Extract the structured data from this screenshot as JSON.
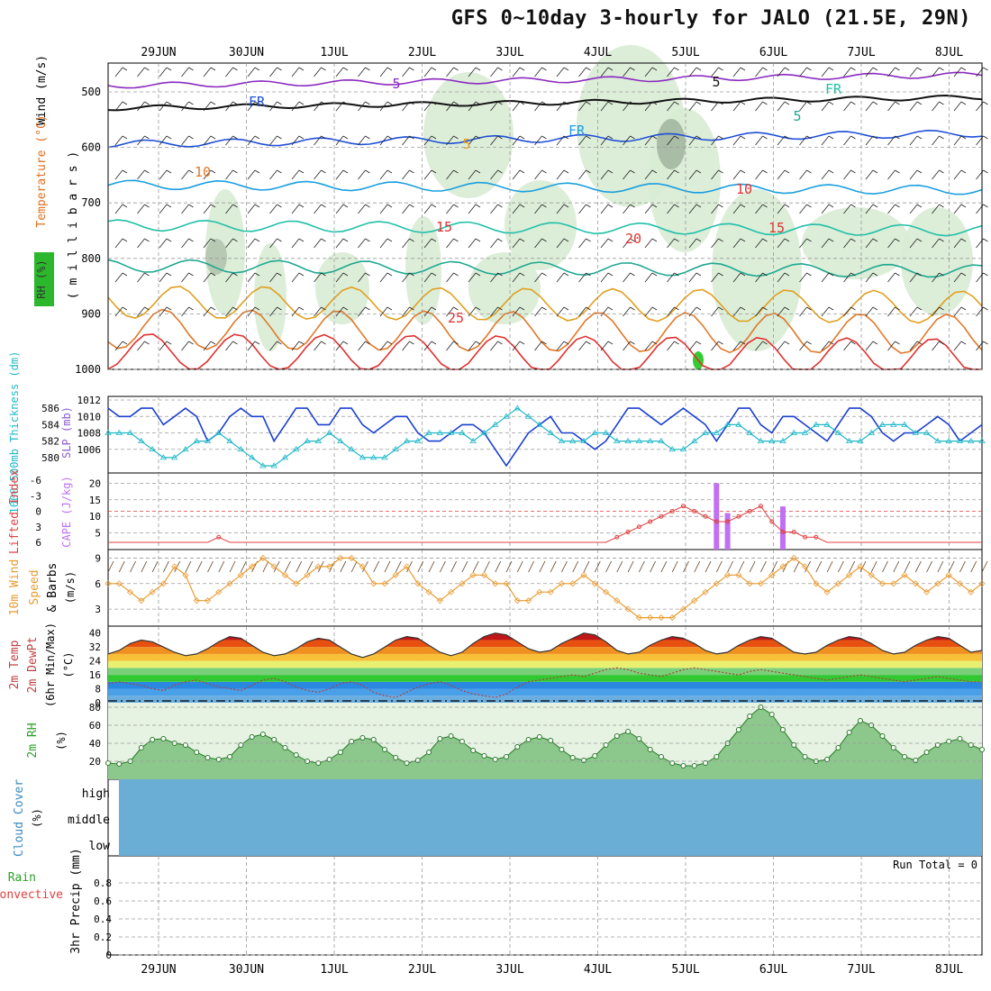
{
  "title": "GFS 0~10day 3-hourly for JALO (21.5E, 29N)",
  "dates": [
    "29JUN",
    "30JUN",
    "1JUL",
    "2JUL",
    "3JUL",
    "4JUL",
    "5JUL",
    "6JUL",
    "7JUL",
    "8JUL"
  ],
  "colors": {
    "frame": "#000000",
    "grid": "#9a9a9a",
    "rh_green": "#2e8b2e",
    "cape": "#c070f0",
    "lifted": "#e04040",
    "wind": "#e89a30",
    "slp": "#1a3fd0",
    "thick": "#20b8c8",
    "cloud": "#6aaed6"
  },
  "panels": {
    "upper": {
      "ylabel_rh": "RH (%)",
      "ylabel_temp": "Temperature (°C)",
      "ylabel_wind": "Wind (m/s)",
      "ylabel_mb": "( m i l l i b a r s )",
      "yticks": [
        "500",
        "600",
        "700",
        "800",
        "900",
        "1000"
      ],
      "contour_labels": [
        "5",
        "5",
        "FR",
        "FR",
        "FR",
        "5",
        "5",
        "10",
        "10",
        "15",
        "15",
        "20",
        "25"
      ]
    },
    "slp": {
      "ylabel_thick": "1000-500mb Thickness (dm)",
      "ylabel_slp": "SLP (mb)",
      "thick_ticks": [
        "586",
        "584",
        "582",
        "580"
      ],
      "slp_ticks": [
        "1012",
        "1010",
        "1008",
        "1006"
      ]
    },
    "cape": {
      "ylabel_li": "Lifted Index",
      "ylabel_cape": "CAPE (J/kg)",
      "li_ticks": [
        "-6",
        "-3",
        "0",
        "3",
        "6"
      ],
      "cape_ticks": [
        "20",
        "15",
        "10",
        "5"
      ]
    },
    "wind10": {
      "ylabel_a": "10m Wind",
      "ylabel_b": "Speed",
      "ylabel_c": "& Barbs",
      "ylabel_unit": "(m/s)",
      "yticks": [
        "9",
        "6",
        "3"
      ]
    },
    "temp2m": {
      "ylabel_a": "2m Temp",
      "ylabel_b": "2m DewPt",
      "ylabel_c": "(6hr Min/Max)",
      "ylabel_unit": "(°C)",
      "yticks": [
        "40",
        "32",
        "24",
        "16",
        "8",
        "0"
      ]
    },
    "rh2m": {
      "ylabel_a": "2m RH",
      "ylabel_unit": "(%)",
      "yticks": [
        "80",
        "60",
        "40",
        "20"
      ]
    },
    "cloud": {
      "ylabel_a": "Cloud Cover",
      "ylabel_unit": "(%)",
      "levels": [
        "high",
        "middle",
        "low"
      ]
    },
    "precip": {
      "ylabel_a": "Total / Rain",
      "ylabel_b": "Convective",
      "ylabel_c": "3hr Precip (mm)",
      "yticks": [
        "0.8",
        "0.6",
        "0.4",
        "0.2",
        "0"
      ],
      "run_total": "Run Total = 0"
    }
  },
  "chart_data": [
    {
      "type": "line",
      "name_unprinted": true,
      "series": [
        {
          "name": "SLP (mb)",
          "values": [
            1011,
            1010,
            1010,
            1011,
            1011,
            1009,
            1010,
            1011,
            1010,
            1007,
            1008,
            1010,
            1011,
            1010,
            1010,
            1007,
            1009,
            1011,
            1011,
            1009,
            1009,
            1011,
            1011,
            1009,
            1008,
            1009,
            1010,
            1010,
            1008,
            1007,
            1007,
            1008,
            1009,
            1009,
            1008,
            1006,
            1004,
            1006,
            1008,
            1009,
            1010,
            1008,
            1008,
            1007,
            1006,
            1007,
            1009,
            1011,
            1011,
            1010,
            1009,
            1010,
            1011,
            1010,
            1009,
            1007,
            1009,
            1011,
            1011,
            1009,
            1008,
            1010,
            1010,
            1009,
            1008,
            1007,
            1009,
            1011,
            1011,
            1010,
            1008,
            1007,
            1008,
            1008,
            1009,
            1010,
            1009,
            1007,
            1008,
            1009
          ]
        },
        {
          "name": "1000-500mb Thickness (dm)",
          "values": [
            583,
            583,
            583,
            582,
            581,
            580,
            580,
            581,
            582,
            582,
            583,
            582,
            581,
            580,
            579,
            579,
            580,
            581,
            582,
            582,
            583,
            582,
            581,
            580,
            580,
            580,
            581,
            582,
            582,
            583,
            583,
            583,
            583,
            582,
            583,
            584,
            585,
            586,
            585,
            584,
            583,
            582,
            582,
            582,
            583,
            583,
            582,
            582,
            582,
            582,
            582,
            581,
            581,
            582,
            583,
            583,
            584,
            584,
            583,
            582,
            582,
            582,
            583,
            583,
            584,
            584,
            583,
            582,
            582,
            583,
            584,
            584,
            584,
            583,
            583,
            582,
            582,
            582,
            582,
            582
          ]
        }
      ],
      "ylim_slp": [
        1004,
        1012
      ],
      "ylim_thick": [
        579,
        587
      ]
    },
    {
      "type": "bar",
      "series": [
        {
          "name": "CAPE (J/kg)",
          "bars": [
            {
              "x": 55,
              "value": 20
            },
            {
              "x": 56,
              "value": 11
            },
            {
              "x": 61,
              "value": 13
            }
          ]
        },
        {
          "name": "Lifted Index",
          "values": [
            6,
            6,
            6,
            6,
            6,
            6,
            6,
            6,
            6,
            6,
            5,
            6,
            6,
            6,
            6,
            6,
            6,
            6,
            6,
            6,
            6,
            6,
            6,
            6,
            6,
            6,
            6,
            6,
            6,
            6,
            6,
            6,
            6,
            6,
            6,
            6,
            6,
            6,
            6,
            6,
            6,
            6,
            6,
            6,
            6,
            6,
            5,
            4,
            3,
            2,
            1,
            0,
            -1,
            0,
            1,
            2,
            2,
            1,
            0,
            -1,
            2,
            4,
            4,
            5,
            5,
            6,
            6,
            6,
            6,
            6,
            6,
            6,
            6,
            6,
            6,
            6,
            6,
            6,
            6,
            6
          ]
        }
      ],
      "ylim_cape": [
        0,
        22
      ],
      "ylim_li": [
        6,
        -6
      ]
    },
    {
      "type": "line",
      "series": [
        {
          "name": "10m Wind Speed",
          "values": [
            6,
            6,
            5,
            4,
            5,
            6,
            8,
            7,
            4,
            4,
            5,
            6,
            7,
            8,
            9,
            8,
            7,
            6,
            7,
            8,
            8,
            9,
            9,
            8,
            6,
            6,
            7,
            8,
            6,
            5,
            4,
            5,
            6,
            7,
            7,
            6,
            6,
            4,
            4,
            5,
            5,
            6,
            6,
            7,
            6,
            5,
            4,
            3,
            2,
            2,
            2,
            2,
            3,
            4,
            5,
            6,
            7,
            7,
            6,
            6,
            7,
            8,
            9,
            8,
            6,
            5,
            6,
            7,
            8,
            7,
            6,
            6,
            7,
            6,
            5,
            6,
            7,
            6,
            5,
            6
          ]
        }
      ],
      "ylim": [
        1,
        10
      ]
    },
    {
      "type": "area",
      "series": [
        {
          "name": "2m Temp",
          "values": [
            28,
            30,
            34,
            36,
            35,
            32,
            29,
            27,
            28,
            31,
            35,
            38,
            37,
            33,
            29,
            27,
            28,
            31,
            35,
            37,
            36,
            32,
            28,
            26,
            28,
            32,
            36,
            38,
            37,
            33,
            29,
            27,
            29,
            34,
            38,
            40,
            39,
            35,
            31,
            29,
            30,
            34,
            37,
            40,
            39,
            35,
            30,
            28,
            29,
            33,
            36,
            38,
            37,
            34,
            30,
            28,
            29,
            33,
            36,
            38,
            37,
            33,
            29,
            28,
            29,
            33,
            36,
            38,
            37,
            34,
            30,
            28,
            29,
            33,
            36,
            38,
            37,
            33,
            29,
            30
          ]
        },
        {
          "name": "2m DewPt",
          "values": [
            11,
            12,
            11,
            10,
            8,
            7,
            10,
            12,
            13,
            11,
            9,
            8,
            7,
            10,
            13,
            14,
            12,
            9,
            7,
            6,
            8,
            11,
            12,
            10,
            6,
            4,
            3,
            6,
            9,
            11,
            12,
            10,
            7,
            5,
            4,
            3,
            5,
            9,
            12,
            13,
            14,
            15,
            16,
            15,
            17,
            19,
            20,
            19,
            17,
            16,
            15,
            17,
            19,
            20,
            19,
            18,
            17,
            16,
            18,
            19,
            18,
            17,
            16,
            15,
            14,
            13,
            14,
            15,
            16,
            15,
            14,
            13,
            12,
            13,
            14,
            15,
            14,
            13,
            12,
            12
          ]
        }
      ],
      "ylim": [
        0,
        44
      ]
    },
    {
      "type": "area",
      "series": [
        {
          "name": "2m RH",
          "values": [
            18,
            17,
            20,
            35,
            44,
            45,
            40,
            38,
            30,
            24,
            22,
            25,
            38,
            47,
            50,
            44,
            35,
            27,
            20,
            18,
            22,
            30,
            42,
            46,
            44,
            33,
            24,
            18,
            21,
            30,
            45,
            48,
            42,
            32,
            26,
            22,
            25,
            36,
            44,
            47,
            43,
            33,
            24,
            21,
            26,
            38,
            48,
            53,
            45,
            33,
            25,
            18,
            15,
            15,
            18,
            25,
            40,
            55,
            70,
            80,
            72,
            55,
            38,
            25,
            20,
            22,
            35,
            52,
            65,
            60,
            48,
            35,
            25,
            21,
            30,
            38,
            42,
            45,
            38,
            33
          ]
        }
      ],
      "ylim": [
        0,
        85
      ]
    },
    {
      "type": "bar",
      "series": [
        {
          "name": "3hr Precip (mm)",
          "values": []
        }
      ],
      "ylim": [
        0,
        1
      ]
    }
  ]
}
